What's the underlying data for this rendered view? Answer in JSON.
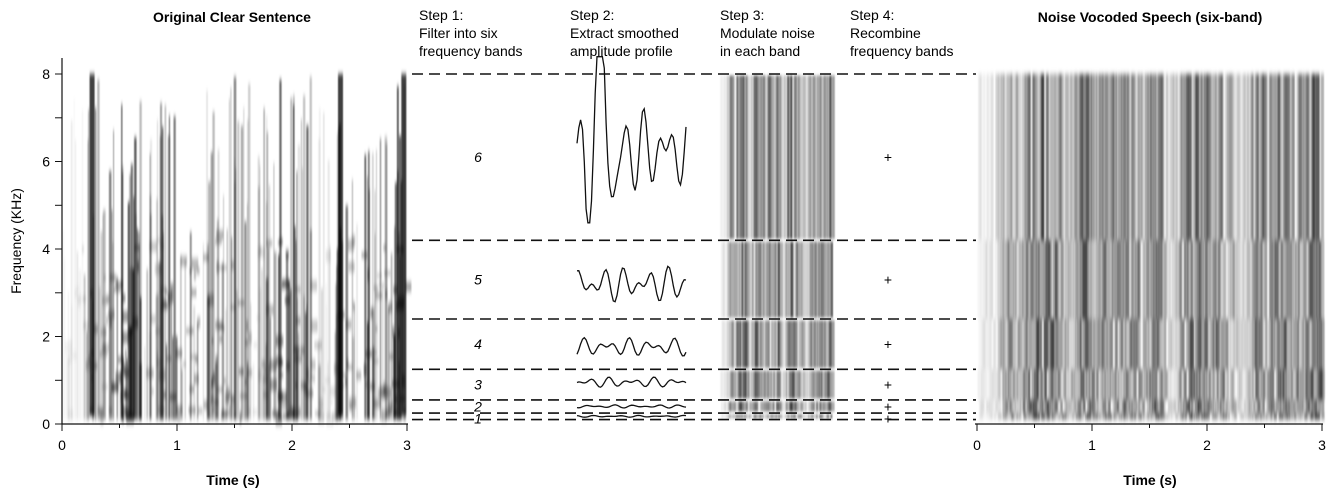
{
  "left_title": "Original Clear Sentence",
  "right_title": "Noise Vocoded Speech (six-band)",
  "steps": [
    {
      "title": "Step 1:",
      "line1": "Filter into six",
      "line2": "frequency bands"
    },
    {
      "title": "Step 2:",
      "line1": "Extract smoothed",
      "line2": "amplitude profile"
    },
    {
      "title": "Step 3:",
      "line1": "Modulate noise",
      "line2": "in each band"
    },
    {
      "title": "Step 4:",
      "line1": "Recombine",
      "line2": "frequency bands"
    }
  ],
  "y_axis_label": "Frequency (KHz)",
  "x_axis_label": "Time (s)",
  "y_ticks": [
    "0",
    "2",
    "4",
    "6",
    "8"
  ],
  "x_ticks": [
    "0",
    "1",
    "2",
    "3"
  ],
  "band_numbers": [
    "1",
    "2",
    "3",
    "4",
    "5",
    "6"
  ],
  "plus_sign": "+",
  "colors": {
    "ink": "#111111",
    "background": "#ffffff"
  },
  "chart_data": {
    "type": "heatmap",
    "panels": [
      "Original Clear Sentence",
      "Noise Vocoded Speech (six-band)"
    ],
    "xlabel": "Time (s)",
    "ylabel": "Frequency (KHz)",
    "xlim": [
      0,
      3
    ],
    "ylim": [
      0,
      8
    ],
    "band_edges_khz": [
      0.1,
      0.25,
      0.55,
      1.25,
      2.4,
      4.2,
      8.0
    ],
    "bands": [
      {
        "number": "1",
        "range_khz": [
          0.1,
          0.25
        ]
      },
      {
        "number": "2",
        "range_khz": [
          0.25,
          0.55
        ]
      },
      {
        "number": "3",
        "range_khz": [
          0.55,
          1.25
        ]
      },
      {
        "number": "4",
        "range_khz": [
          1.25,
          2.4
        ]
      },
      {
        "number": "5",
        "range_khz": [
          2.4,
          4.2
        ]
      },
      {
        "number": "6",
        "range_khz": [
          4.2,
          8.0
        ]
      }
    ]
  }
}
